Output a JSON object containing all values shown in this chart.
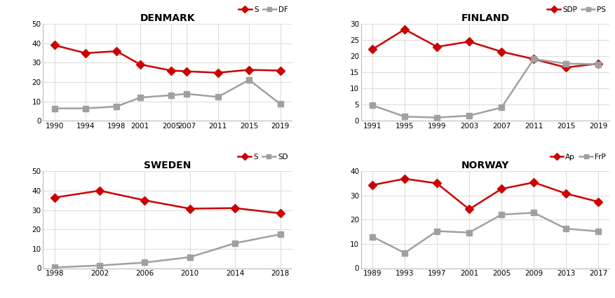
{
  "denmark": {
    "title": "DENMARK",
    "legend1": "S",
    "legend2": "DF",
    "years": [
      1990,
      1994,
      1998,
      2001,
      2005,
      2007,
      2011,
      2015,
      2019
    ],
    "s_values": [
      39.0,
      34.9,
      35.9,
      29.1,
      25.9,
      25.5,
      24.8,
      26.3,
      25.9
    ],
    "df_values": [
      6.4,
      6.4,
      7.4,
      12.0,
      13.2,
      13.9,
      12.3,
      21.1,
      8.7
    ],
    "ylim": [
      0,
      50
    ],
    "yticks": [
      0,
      10,
      20,
      30,
      40,
      50
    ]
  },
  "finland": {
    "title": "FINLAND",
    "legend1": "SDP",
    "legend2": "PS",
    "years": [
      1991,
      1995,
      1999,
      2003,
      2007,
      2011,
      2015,
      2019
    ],
    "sdp_values": [
      22.1,
      28.3,
      22.9,
      24.5,
      21.4,
      19.1,
      16.5,
      17.7
    ],
    "ps_values": [
      4.8,
      1.3,
      1.0,
      1.6,
      4.1,
      19.1,
      17.7,
      17.5
    ],
    "ylim": [
      0,
      30
    ],
    "yticks": [
      0,
      5,
      10,
      15,
      20,
      25,
      30
    ]
  },
  "sweden": {
    "title": "SWEDEN",
    "legend1": "S",
    "legend2": "SD",
    "years": [
      1998,
      2002,
      2006,
      2010,
      2014,
      2018
    ],
    "s_values": [
      36.4,
      40.0,
      35.0,
      30.7,
      31.0,
      28.3
    ],
    "sd_values": [
      0.4,
      1.4,
      2.9,
      5.7,
      12.9,
      17.5
    ],
    "ylim": [
      0,
      50
    ],
    "yticks": [
      0,
      10,
      20,
      30,
      40,
      50
    ]
  },
  "norway": {
    "title": "NORWAY",
    "legend1": "Ap",
    "legend2": "FrP",
    "years": [
      1989,
      1993,
      1997,
      2001,
      2005,
      2009,
      2013,
      2017
    ],
    "ap_values": [
      34.3,
      36.9,
      35.0,
      24.3,
      32.7,
      35.4,
      30.8,
      27.4
    ],
    "frp_values": [
      13.0,
      6.3,
      15.3,
      14.7,
      22.1,
      22.9,
      16.3,
      15.2
    ],
    "ylim": [
      0,
      40
    ],
    "yticks": [
      0,
      10,
      20,
      30,
      40
    ]
  },
  "red_color": "#cc0000",
  "gray_color": "#a0a0a0",
  "line_width": 1.8,
  "marker_size": 6
}
